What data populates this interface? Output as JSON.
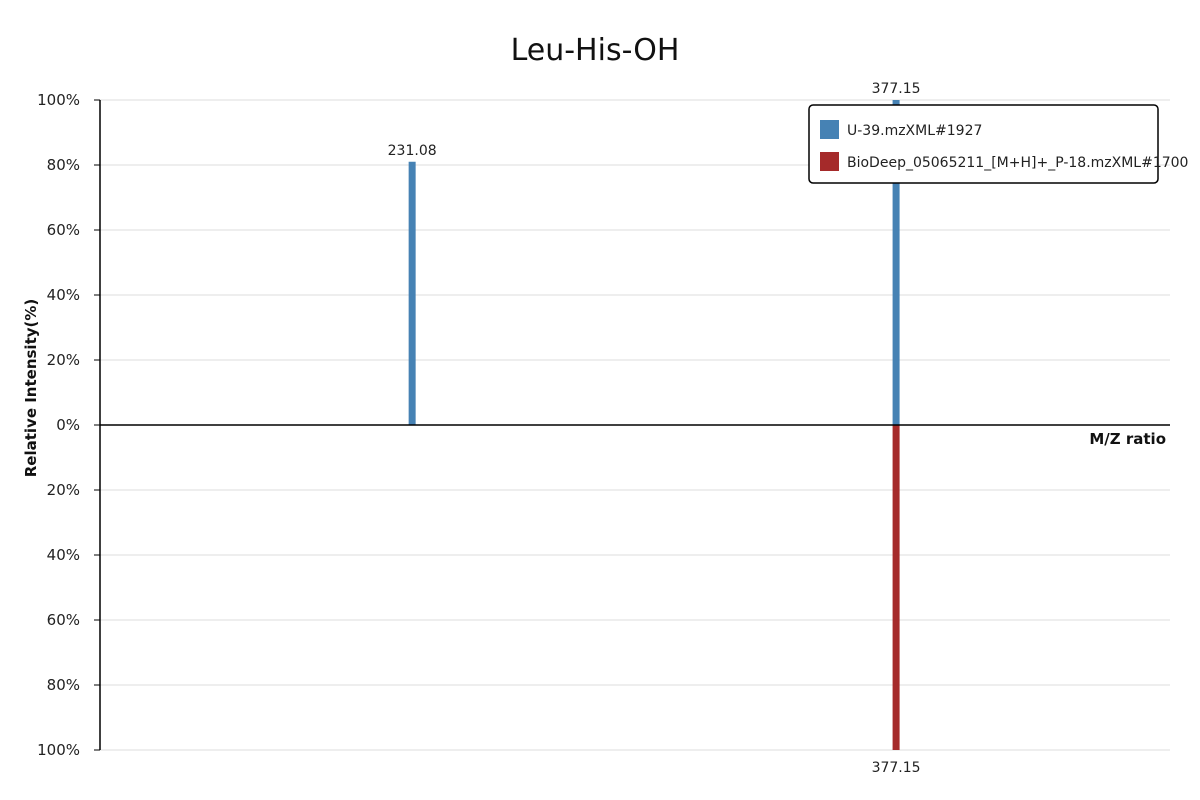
{
  "chart_data": {
    "type": "bar",
    "subtype": "mirror-mass-spectrum",
    "title": "Leu-His-OH",
    "xlabel": "M/Z ratio",
    "ylabel": "Relative Intensity(%)",
    "ylim": [
      -100,
      100
    ],
    "y_ticks": [
      "100%",
      "80%",
      "60%",
      "40%",
      "20%",
      "0%",
      "20%",
      "40%",
      "60%",
      "80%",
      "100%"
    ],
    "grid": true,
    "legend_position": "top-right",
    "series": [
      {
        "name": "U-39.mzXML#1927",
        "color": "#4682b4",
        "direction": "up",
        "points": [
          {
            "mz": 231.08,
            "intensity": 81,
            "label": "231.08"
          },
          {
            "mz": 377.15,
            "intensity": 100,
            "label": "377.15"
          }
        ]
      },
      {
        "name": "BioDeep_05065211_[M+H]+_P-18.mzXML#1700",
        "color": "#a52a2a",
        "direction": "down",
        "points": [
          {
            "mz": 377.15,
            "intensity": 100,
            "label": "377.15"
          }
        ]
      }
    ]
  }
}
